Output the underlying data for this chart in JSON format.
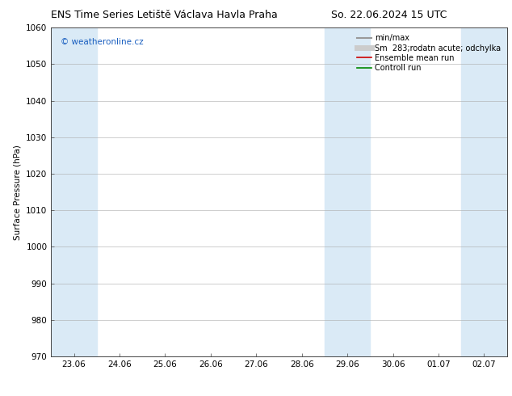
{
  "title_left": "ENS Time Series Letiště Václava Havla Praha",
  "title_right": "So. 22.06.2024 15 UTC",
  "ylabel": "Surface Pressure (hPa)",
  "ylim": [
    970,
    1060
  ],
  "yticks": [
    970,
    980,
    990,
    1000,
    1010,
    1020,
    1030,
    1040,
    1050,
    1060
  ],
  "xtick_labels": [
    "23.06",
    "24.06",
    "25.06",
    "26.06",
    "27.06",
    "28.06",
    "29.06",
    "30.06",
    "01.07",
    "02.07"
  ],
  "xtick_positions": [
    1,
    2,
    3,
    4,
    5,
    6,
    7,
    8,
    9,
    10
  ],
  "xlim": [
    0.5,
    10.5
  ],
  "shaded_bands": [
    {
      "x_start": 0.5,
      "x_end": 1.5,
      "color": "#daeaf6"
    },
    {
      "x_start": 6.5,
      "x_end": 7.5,
      "color": "#daeaf6"
    },
    {
      "x_start": 9.5,
      "x_end": 10.5,
      "color": "#daeaf6"
    }
  ],
  "watermark_text": "© weatheronline.cz",
  "watermark_color": "#1a5fc0",
  "watermark_fontsize": 7.5,
  "legend_entries": [
    {
      "label": "min/max",
      "color": "#999999",
      "lw": 1.5
    },
    {
      "label": "Sm  283;rodatn acute; odchylka",
      "color": "#cccccc",
      "lw": 5
    },
    {
      "label": "Ensemble mean run",
      "color": "#cc0000",
      "lw": 1.2
    },
    {
      "label": "Controll run",
      "color": "#008800",
      "lw": 1.2
    }
  ],
  "bg_color": "#ffffff",
  "plot_bg_color": "#ffffff",
  "grid_color": "#aaaaaa",
  "title_fontsize": 9,
  "axis_label_fontsize": 7.5,
  "tick_fontsize": 7.5,
  "legend_fontsize": 7
}
